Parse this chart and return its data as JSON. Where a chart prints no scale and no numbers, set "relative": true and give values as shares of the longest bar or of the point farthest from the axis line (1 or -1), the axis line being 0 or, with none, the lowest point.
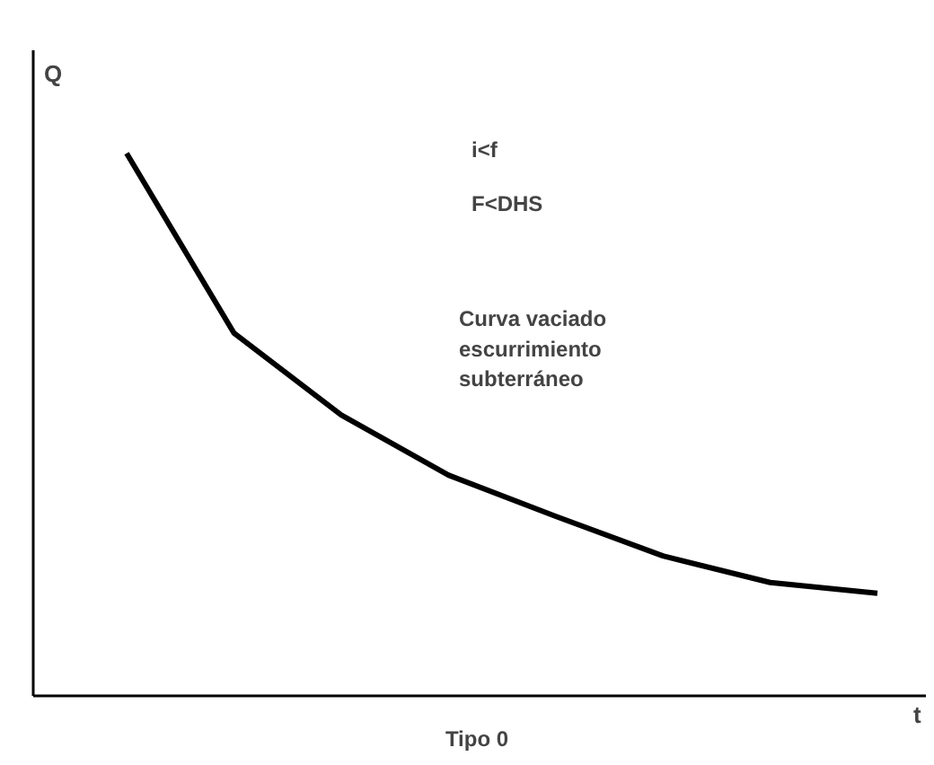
{
  "chart_data": {
    "type": "line",
    "title": "Tipo 0",
    "xlabel": "t",
    "ylabel": "Q",
    "relative": true,
    "grid": false,
    "categories": [
      null,
      null,
      null,
      null,
      null,
      null,
      null,
      null
    ],
    "series": [
      {
        "color": "#000000",
        "values": [
          1,
          0.669,
          0.518,
          0.407,
          0.331,
          0.258,
          0.209,
          0.189
        ]
      }
    ],
    "annotations": [
      "i<f",
      "F<DHS",
      "Curva vaciado\nescurrimiento\nsubterráneo"
    ]
  }
}
